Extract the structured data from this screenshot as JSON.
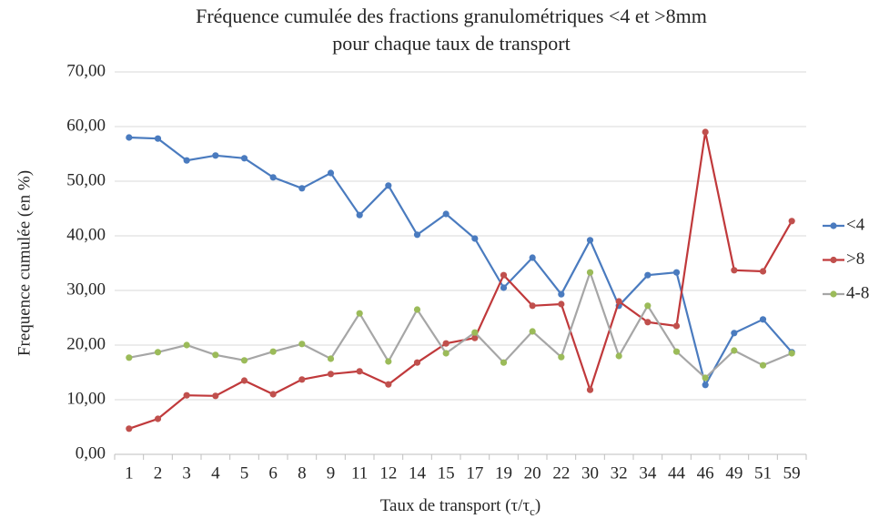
{
  "chart_data": {
    "type": "line",
    "title": [
      "Fréquence cumulée des fractions granulométriques <4 et >8mm",
      "pour chaque taux de transport"
    ],
    "x_label": [
      "Taux de transport (τ/τ",
      "c",
      ")"
    ],
    "y_label": "Frequence cumulée (en %)",
    "categories": [
      "1",
      "2",
      "3",
      "4",
      "5",
      "6",
      "8",
      "9",
      "11",
      "12",
      "14",
      "15",
      "17",
      "19",
      "20",
      "22",
      "30",
      "32",
      "34",
      "44",
      "46",
      "49",
      "51",
      "59"
    ],
    "series": [
      {
        "name": "<4",
        "color": "#4a7bbf",
        "marker_color": "#4a7bbf",
        "values": [
          58.0,
          57.8,
          53.8,
          54.7,
          54.2,
          50.7,
          48.7,
          51.5,
          43.8,
          49.2,
          40.2,
          44.0,
          39.5,
          30.5,
          36.0,
          29.3,
          39.2,
          27.2,
          32.8,
          33.3,
          12.7,
          22.2,
          24.7,
          18.7
        ]
      },
      {
        "name": ">8",
        "color": "#c0393b",
        "marker_color": "#c0504d",
        "values": [
          4.7,
          6.5,
          10.8,
          10.7,
          13.5,
          11.0,
          13.7,
          14.7,
          15.2,
          12.8,
          16.8,
          20.3,
          21.3,
          32.8,
          27.2,
          27.5,
          11.8,
          28.0,
          24.2,
          23.5,
          59.0,
          33.7,
          33.5,
          42.7
        ]
      },
      {
        "name": "4-8",
        "color": "#a6a6a6",
        "marker_color": "#9bbb59",
        "values": [
          17.7,
          18.7,
          20.0,
          18.2,
          17.2,
          18.8,
          20.2,
          17.5,
          25.8,
          17.0,
          26.5,
          18.5,
          22.3,
          16.8,
          22.5,
          17.8,
          33.3,
          18.0,
          27.2,
          18.8,
          14.0,
          19.0,
          16.3,
          18.5
        ]
      }
    ],
    "ylim": [
      0,
      70
    ],
    "yticks": [
      {
        "value": 0,
        "label": "0,00"
      },
      {
        "value": 10,
        "label": "10,00"
      },
      {
        "value": 20,
        "label": "20,00"
      },
      {
        "value": 30,
        "label": "30,00"
      },
      {
        "value": 40,
        "label": "40,00"
      },
      {
        "value": 50,
        "label": "50,00"
      },
      {
        "value": 60,
        "label": "60,00"
      },
      {
        "value": 70,
        "label": "70,00"
      }
    ],
    "grid": true,
    "legend": "right"
  }
}
